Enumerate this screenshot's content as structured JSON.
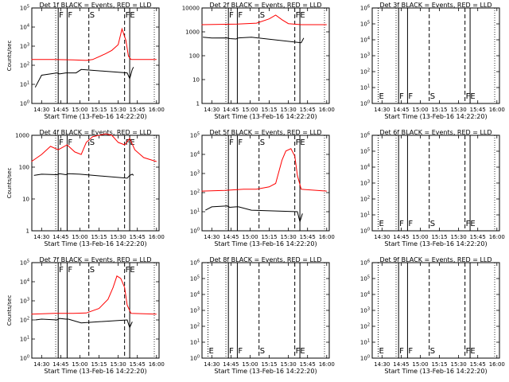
{
  "figure": {
    "xlabel": "Start Time (13-Feb-16 14:22:20)",
    "ylabel": "Counts/sec",
    "x_ticks": [
      "14:30",
      "14:45",
      "15:00",
      "15:15",
      "15:30",
      "15:45",
      "16:00"
    ],
    "colors": {
      "events": "#000000",
      "lld": "#ff0000",
      "axis": "#000000"
    }
  },
  "chart_data": [
    {
      "type": "line",
      "title": "Det 1f BLACK = Events, RED = LLD",
      "ylabel": "Counts/sec",
      "xlim": [
        "14:22:20",
        "16:02:00"
      ],
      "ylog": true,
      "y_ticks": [
        "10^0",
        "10^1",
        "10^2",
        "10^3",
        "10^4",
        "10^5"
      ],
      "event_marks": [
        {
          "t": "14:43",
          "label": "F",
          "style": "solid"
        },
        {
          "t": "14:50",
          "label": "F",
          "style": "solid"
        },
        {
          "t": "15:07",
          "label": "S",
          "style": "dashed"
        },
        {
          "t": "15:35",
          "label": "FE",
          "style": "dashed"
        },
        {
          "t": "15:39",
          "label": "",
          "style": "solid"
        }
      ],
      "series": [
        {
          "name": "LLD",
          "color": "#ff0000",
          "x": [
            "14:22",
            "14:40",
            "14:55",
            "15:05",
            "15:10",
            "15:20",
            "15:25",
            "15:30",
            "15:33",
            "15:36",
            "15:38",
            "15:40",
            "16:00"
          ],
          "y": [
            200,
            200,
            190,
            180,
            200,
            400,
            600,
            1200,
            8000,
            2000,
            300,
            200,
            200
          ]
        },
        {
          "name": "Events",
          "color": "#000000",
          "x": [
            "14:25",
            "14:30",
            "14:42",
            "14:44",
            "14:49",
            "14:51",
            "14:57",
            "15:01",
            "15:37",
            "15:39",
            "15:41",
            "15:42"
          ],
          "y": [
            7,
            30,
            40,
            35,
            40,
            40,
            40,
            60,
            40,
            20,
            60,
            80
          ]
        }
      ]
    },
    {
      "type": "line",
      "title": "Det 2f BLACK = Events, RED = LLD",
      "ylabel": "",
      "xlim": [
        "14:22:20",
        "16:02:00"
      ],
      "ylog": true,
      "y_ticks": [
        "1",
        "10",
        "100",
        "1000",
        "10000"
      ],
      "event_marks": [
        {
          "t": "14:43",
          "label": "F",
          "style": "solid"
        },
        {
          "t": "14:50",
          "label": "F",
          "style": "solid"
        },
        {
          "t": "15:07",
          "label": "S",
          "style": "dashed"
        },
        {
          "t": "15:35",
          "label": "FE",
          "style": "dashed"
        },
        {
          "t": "15:39",
          "label": "",
          "style": "solid"
        }
      ],
      "series": [
        {
          "name": "LLD",
          "color": "#ff0000",
          "x": [
            "14:22",
            "14:50",
            "15:05",
            "15:15",
            "15:20",
            "15:25",
            "15:30",
            "15:40",
            "16:00"
          ],
          "y": [
            2000,
            2100,
            2300,
            3500,
            5000,
            3200,
            2200,
            2000,
            2000
          ]
        },
        {
          "name": "Events",
          "color": "#000000",
          "x": [
            "14:23",
            "14:30",
            "14:42",
            "14:44",
            "14:49",
            "14:51",
            "15:01",
            "15:40",
            "15:42"
          ],
          "y": [
            600,
            550,
            560,
            520,
            500,
            560,
            600,
            350,
            550
          ]
        }
      ]
    },
    {
      "type": "line",
      "title": "Det 3f BLACK = Events, RED = LLD",
      "ylabel": "",
      "xlim": [
        "14:22:20",
        "16:02:00"
      ],
      "ylog": true,
      "y_ticks": [
        "10^0",
        "10^1",
        "10^2",
        "10^3",
        "10^4",
        "10^5",
        "10^6"
      ],
      "event_marks": [
        {
          "t": "14:27",
          "label": "E",
          "style": "dotted"
        },
        {
          "t": "14:43",
          "label": "F",
          "style": "solid"
        },
        {
          "t": "14:50",
          "label": "F",
          "style": "solid"
        },
        {
          "t": "15:07",
          "label": "S",
          "style": "dashed"
        },
        {
          "t": "15:35",
          "label": "FE",
          "style": "dashed"
        },
        {
          "t": "15:39",
          "label": "",
          "style": "solid"
        }
      ],
      "series": []
    },
    {
      "type": "line",
      "title": "Det 4f BLACK = Events, RED = LLD",
      "ylabel": "Counts/sec",
      "xlim": [
        "14:22:20",
        "16:02:00"
      ],
      "ylog": true,
      "y_ticks": [
        "1",
        "10",
        "100",
        "1000"
      ],
      "event_marks": [
        {
          "t": "14:43",
          "label": "F",
          "style": "solid"
        },
        {
          "t": "14:50",
          "label": "F",
          "style": "solid"
        },
        {
          "t": "15:07",
          "label": "S",
          "style": "dashed"
        },
        {
          "t": "15:35",
          "label": "FE",
          "style": "dashed"
        },
        {
          "t": "15:39",
          "label": "",
          "style": "solid"
        }
      ],
      "series": [
        {
          "name": "LLD",
          "color": "#ff0000",
          "x": [
            "14:22",
            "14:30",
            "14:37",
            "14:43",
            "14:50",
            "14:56",
            "15:01",
            "15:05",
            "15:10",
            "15:20",
            "15:25",
            "15:30",
            "15:35",
            "15:39",
            "15:43",
            "15:50",
            "16:00"
          ],
          "y": [
            150,
            250,
            450,
            350,
            500,
            300,
            250,
            600,
            900,
            1100,
            1000,
            600,
            500,
            800,
            350,
            200,
            150
          ]
        },
        {
          "name": "Events",
          "color": "#000000",
          "x": [
            "14:24",
            "14:30",
            "14:42",
            "14:44",
            "14:49",
            "14:51",
            "15:00",
            "15:37",
            "15:39",
            "15:41",
            "15:42"
          ],
          "y": [
            55,
            60,
            58,
            62,
            58,
            62,
            60,
            45,
            55,
            60,
            55
          ]
        }
      ]
    },
    {
      "type": "line",
      "title": "Det 5f BLACK = Events, RED = LLD",
      "ylabel": "",
      "xlim": [
        "14:22:20",
        "16:02:00"
      ],
      "ylog": true,
      "y_ticks": [
        "10^0",
        "10^1",
        "10^2",
        "10^3",
        "10^4",
        "10^5"
      ],
      "event_marks": [
        {
          "t": "14:43",
          "label": "F",
          "style": "solid"
        },
        {
          "t": "14:50",
          "label": "F",
          "style": "solid"
        },
        {
          "t": "15:07",
          "label": "S",
          "style": "dashed"
        },
        {
          "t": "15:35",
          "label": "FE",
          "style": "dashed"
        },
        {
          "t": "15:39",
          "label": "",
          "style": "solid"
        }
      ],
      "series": [
        {
          "name": "LLD",
          "color": "#ff0000",
          "x": [
            "14:22",
            "14:40",
            "14:55",
            "15:05",
            "15:15",
            "15:20",
            "15:25",
            "15:28",
            "15:32",
            "15:35",
            "15:37",
            "15:40",
            "16:00"
          ],
          "y": [
            120,
            130,
            150,
            150,
            200,
            300,
            5000,
            15000,
            20000,
            8000,
            800,
            150,
            120
          ]
        },
        {
          "name": "Events",
          "color": "#000000",
          "x": [
            "14:25",
            "14:30",
            "14:42",
            "14:44",
            "14:49",
            "14:51",
            "15:01",
            "15:37",
            "15:39",
            "15:41"
          ],
          "y": [
            12,
            18,
            20,
            17,
            18,
            18,
            12,
            10,
            3,
            8
          ]
        }
      ]
    },
    {
      "type": "line",
      "title": "Det 6f BLACK = Events, RED = LLD",
      "ylabel": "",
      "xlim": [
        "14:22:20",
        "16:02:00"
      ],
      "ylog": true,
      "y_ticks": [
        "10^0",
        "10^1",
        "10^2",
        "10^3",
        "10^4",
        "10^5",
        "10^6"
      ],
      "event_marks": [
        {
          "t": "14:27",
          "label": "E",
          "style": "dotted"
        },
        {
          "t": "14:43",
          "label": "F",
          "style": "solid"
        },
        {
          "t": "14:50",
          "label": "F",
          "style": "solid"
        },
        {
          "t": "15:07",
          "label": "S",
          "style": "dashed"
        },
        {
          "t": "15:35",
          "label": "FE",
          "style": "dashed"
        },
        {
          "t": "15:39",
          "label": "",
          "style": "solid"
        }
      ],
      "series": []
    },
    {
      "type": "line",
      "title": "Det 7f BLACK = Events, RED = LLD",
      "ylabel": "Counts/sec",
      "xlim": [
        "14:22:20",
        "16:02:00"
      ],
      "ylog": true,
      "y_ticks": [
        "10^0",
        "10^1",
        "10^2",
        "10^3",
        "10^4",
        "10^5"
      ],
      "event_marks": [
        {
          "t": "14:43",
          "label": "F",
          "style": "solid"
        },
        {
          "t": "14:50",
          "label": "F",
          "style": "solid"
        },
        {
          "t": "15:07",
          "label": "S",
          "style": "dashed"
        },
        {
          "t": "15:35",
          "label": "FE",
          "style": "dashed"
        },
        {
          "t": "15:39",
          "label": "",
          "style": "solid"
        }
      ],
      "series": [
        {
          "name": "LLD",
          "color": "#ff0000",
          "x": [
            "14:22",
            "14:40",
            "14:55",
            "15:05",
            "15:15",
            "15:22",
            "15:26",
            "15:29",
            "15:32",
            "15:35",
            "15:37",
            "15:40",
            "16:00"
          ],
          "y": [
            200,
            220,
            220,
            230,
            400,
            1200,
            5000,
            20000,
            15000,
            5000,
            600,
            220,
            200
          ]
        },
        {
          "name": "Events",
          "color": "#000000",
          "x": [
            "14:25",
            "14:30",
            "14:42",
            "14:44",
            "14:49",
            "14:51",
            "15:01",
            "15:37",
            "15:39",
            "15:41"
          ],
          "y": [
            100,
            110,
            100,
            120,
            110,
            110,
            70,
            100,
            40,
            80
          ]
        }
      ]
    },
    {
      "type": "line",
      "title": "Det 8f BLACK = Events, RED = LLD",
      "ylabel": "",
      "xlim": [
        "14:22:20",
        "16:02:00"
      ],
      "ylog": true,
      "y_ticks": [
        "10^0",
        "10^1",
        "10^2",
        "10^3",
        "10^4",
        "10^5",
        "10^6"
      ],
      "event_marks": [
        {
          "t": "14:27",
          "label": "E",
          "style": "dotted"
        },
        {
          "t": "14:43",
          "label": "F",
          "style": "solid"
        },
        {
          "t": "14:50",
          "label": "F",
          "style": "solid"
        },
        {
          "t": "15:07",
          "label": "S",
          "style": "dashed"
        },
        {
          "t": "15:35",
          "label": "FE",
          "style": "dashed"
        },
        {
          "t": "15:39",
          "label": "",
          "style": "solid"
        }
      ],
      "series": []
    },
    {
      "type": "line",
      "title": "Det 9f BLACK = Events, RED = LLD",
      "ylabel": "",
      "xlim": [
        "14:22:20",
        "16:02:00"
      ],
      "ylog": true,
      "y_ticks": [
        "10^0",
        "10^1",
        "10^2",
        "10^3",
        "10^4",
        "10^5",
        "10^6"
      ],
      "event_marks": [
        {
          "t": "14:27",
          "label": "E",
          "style": "dotted"
        },
        {
          "t": "14:43",
          "label": "F",
          "style": "solid"
        },
        {
          "t": "14:50",
          "label": "F",
          "style": "solid"
        },
        {
          "t": "15:07",
          "label": "S",
          "style": "dashed"
        },
        {
          "t": "15:35",
          "label": "FE",
          "style": "dashed"
        },
        {
          "t": "15:39",
          "label": "",
          "style": "solid"
        }
      ],
      "series": []
    }
  ]
}
